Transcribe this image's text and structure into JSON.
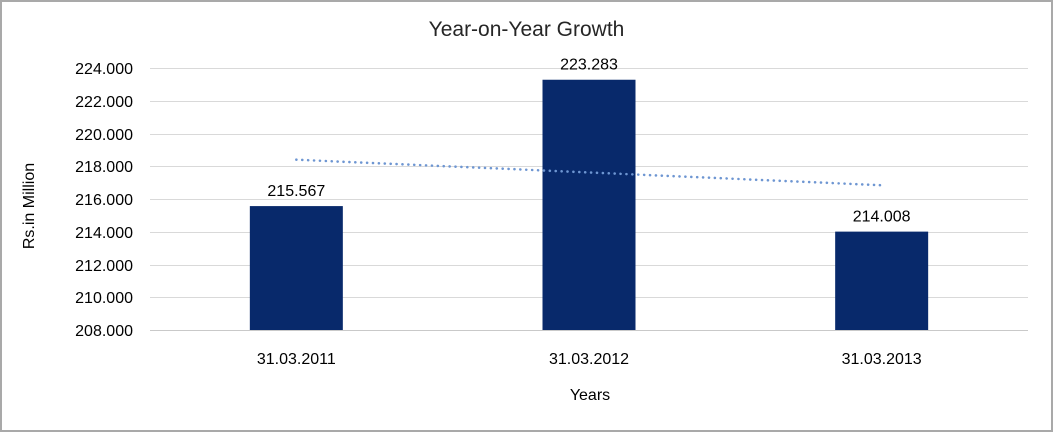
{
  "chart": {
    "title": "Year-on-Year Growth",
    "y_axis_title": "Rs.in Million",
    "x_axis_title": "Years"
  },
  "chart_data": {
    "type": "bar",
    "title": "Year-on-Year Growth",
    "xlabel": "Years",
    "ylabel": "Rs.in Million",
    "categories": [
      "31.03.2011",
      "31.03.2012",
      "31.03.2013"
    ],
    "values": [
      215.567,
      223.283,
      214.008
    ],
    "value_labels": [
      "215.567",
      "223.283",
      "214.008"
    ],
    "ylim": [
      208,
      224
    ],
    "ytick_step": 2,
    "ytick_labels": [
      "208.000",
      "210.000",
      "212.000",
      "214.000",
      "216.000",
      "218.000",
      "220.000",
      "222.000",
      "224.000"
    ],
    "grid": true,
    "legend": false,
    "trendline": {
      "type": "linear",
      "style": "dotted"
    },
    "colors": {
      "bar": "#08296B",
      "trendline": "#6E96D2",
      "gridline": "#D9D9D9",
      "axis_line": "#C9C9C9",
      "text": "#000000",
      "title_text": "#262626",
      "background": "#FFFFFF",
      "border": "#A9A9A9"
    }
  }
}
